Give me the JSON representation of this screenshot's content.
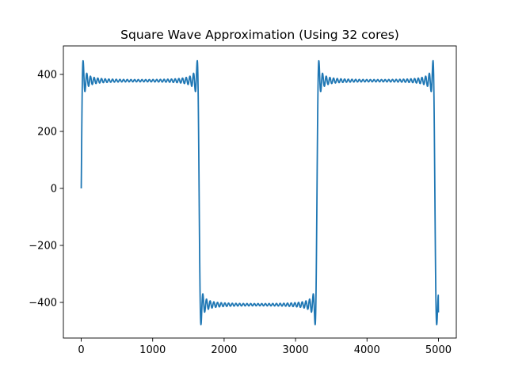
{
  "chart_data": {
    "type": "line",
    "title": "Square Wave Approximation (Using 32 cores)",
    "xlabel": "",
    "ylabel": "",
    "xlim": [
      -250,
      5250
    ],
    "ylim": [
      -525,
      500
    ],
    "xticks": [
      0,
      1000,
      2000,
      3000,
      4000,
      5000
    ],
    "xtick_labels": [
      "0",
      "1000",
      "2000",
      "3000",
      "4000",
      "5000"
    ],
    "yticks": [
      -400,
      -200,
      0,
      200,
      400
    ],
    "ytick_labels": [
      "−400",
      "−200",
      "0",
      "200",
      "400"
    ],
    "grid": false,
    "legend": false,
    "series": [
      {
        "color": "#1f77b4",
        "description": "Fourier-series square wave, period ~3300 samples, high level ~378, low level ~-408, Gibbs overshoot near edges",
        "x_range": [
          0,
          5000
        ],
        "period": 3300,
        "high_level": 378,
        "low_level": -408,
        "transitions": [
          0,
          1650,
          3300,
          4950
        ],
        "ripple_cycles_per_half_period": 32,
        "overshoot_peak": 450,
        "undershoot_peak": -478,
        "end_value": -435
      }
    ]
  }
}
